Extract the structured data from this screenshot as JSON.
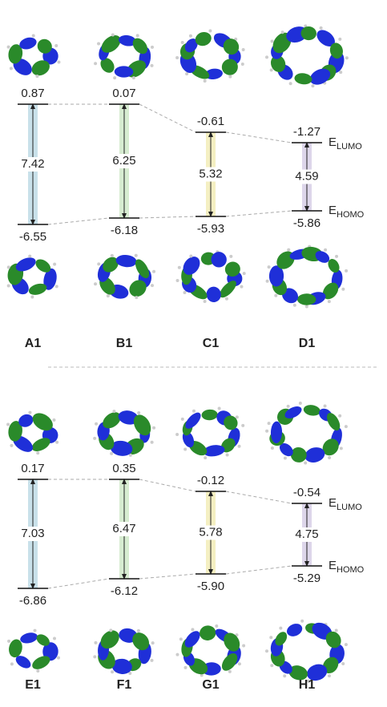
{
  "panels": [
    {
      "molecules": [
        {
          "label": "A1",
          "lumo": 0.87,
          "homo": -6.55,
          "gap": 7.42,
          "color": "#c9e1ea"
        },
        {
          "label": "B1",
          "lumo": 0.07,
          "homo": -6.18,
          "gap": 6.25,
          "color": "#d7ecd1"
        },
        {
          "label": "C1",
          "lumo": -0.61,
          "homo": -5.93,
          "gap": 5.32,
          "color": "#f4efc2"
        },
        {
          "label": "D1",
          "lumo": -1.27,
          "homo": -5.86,
          "gap": 4.59,
          "color": "#ddd6ea"
        }
      ]
    },
    {
      "molecules": [
        {
          "label": "E1",
          "lumo": 0.17,
          "homo": -6.86,
          "gap": 7.03,
          "color": "#c9e1ea"
        },
        {
          "label": "F1",
          "lumo": 0.35,
          "homo": -6.12,
          "gap": 6.47,
          "color": "#d7ecd1"
        },
        {
          "label": "G1",
          "lumo": -0.12,
          "homo": {
            "value": -5.9,
            "label": "-5.90"
          },
          "gap": 5.78,
          "color": "#f4efc2"
        },
        {
          "label": "H1",
          "lumo": -0.54,
          "homo": -5.29,
          "gap": 4.75,
          "color": "#ddd6ea"
        }
      ]
    }
  ],
  "lumo_label": {
    "main": "E",
    "sub": "LUMO"
  },
  "homo_label": {
    "main": "E",
    "sub": "HOMO"
  }
}
